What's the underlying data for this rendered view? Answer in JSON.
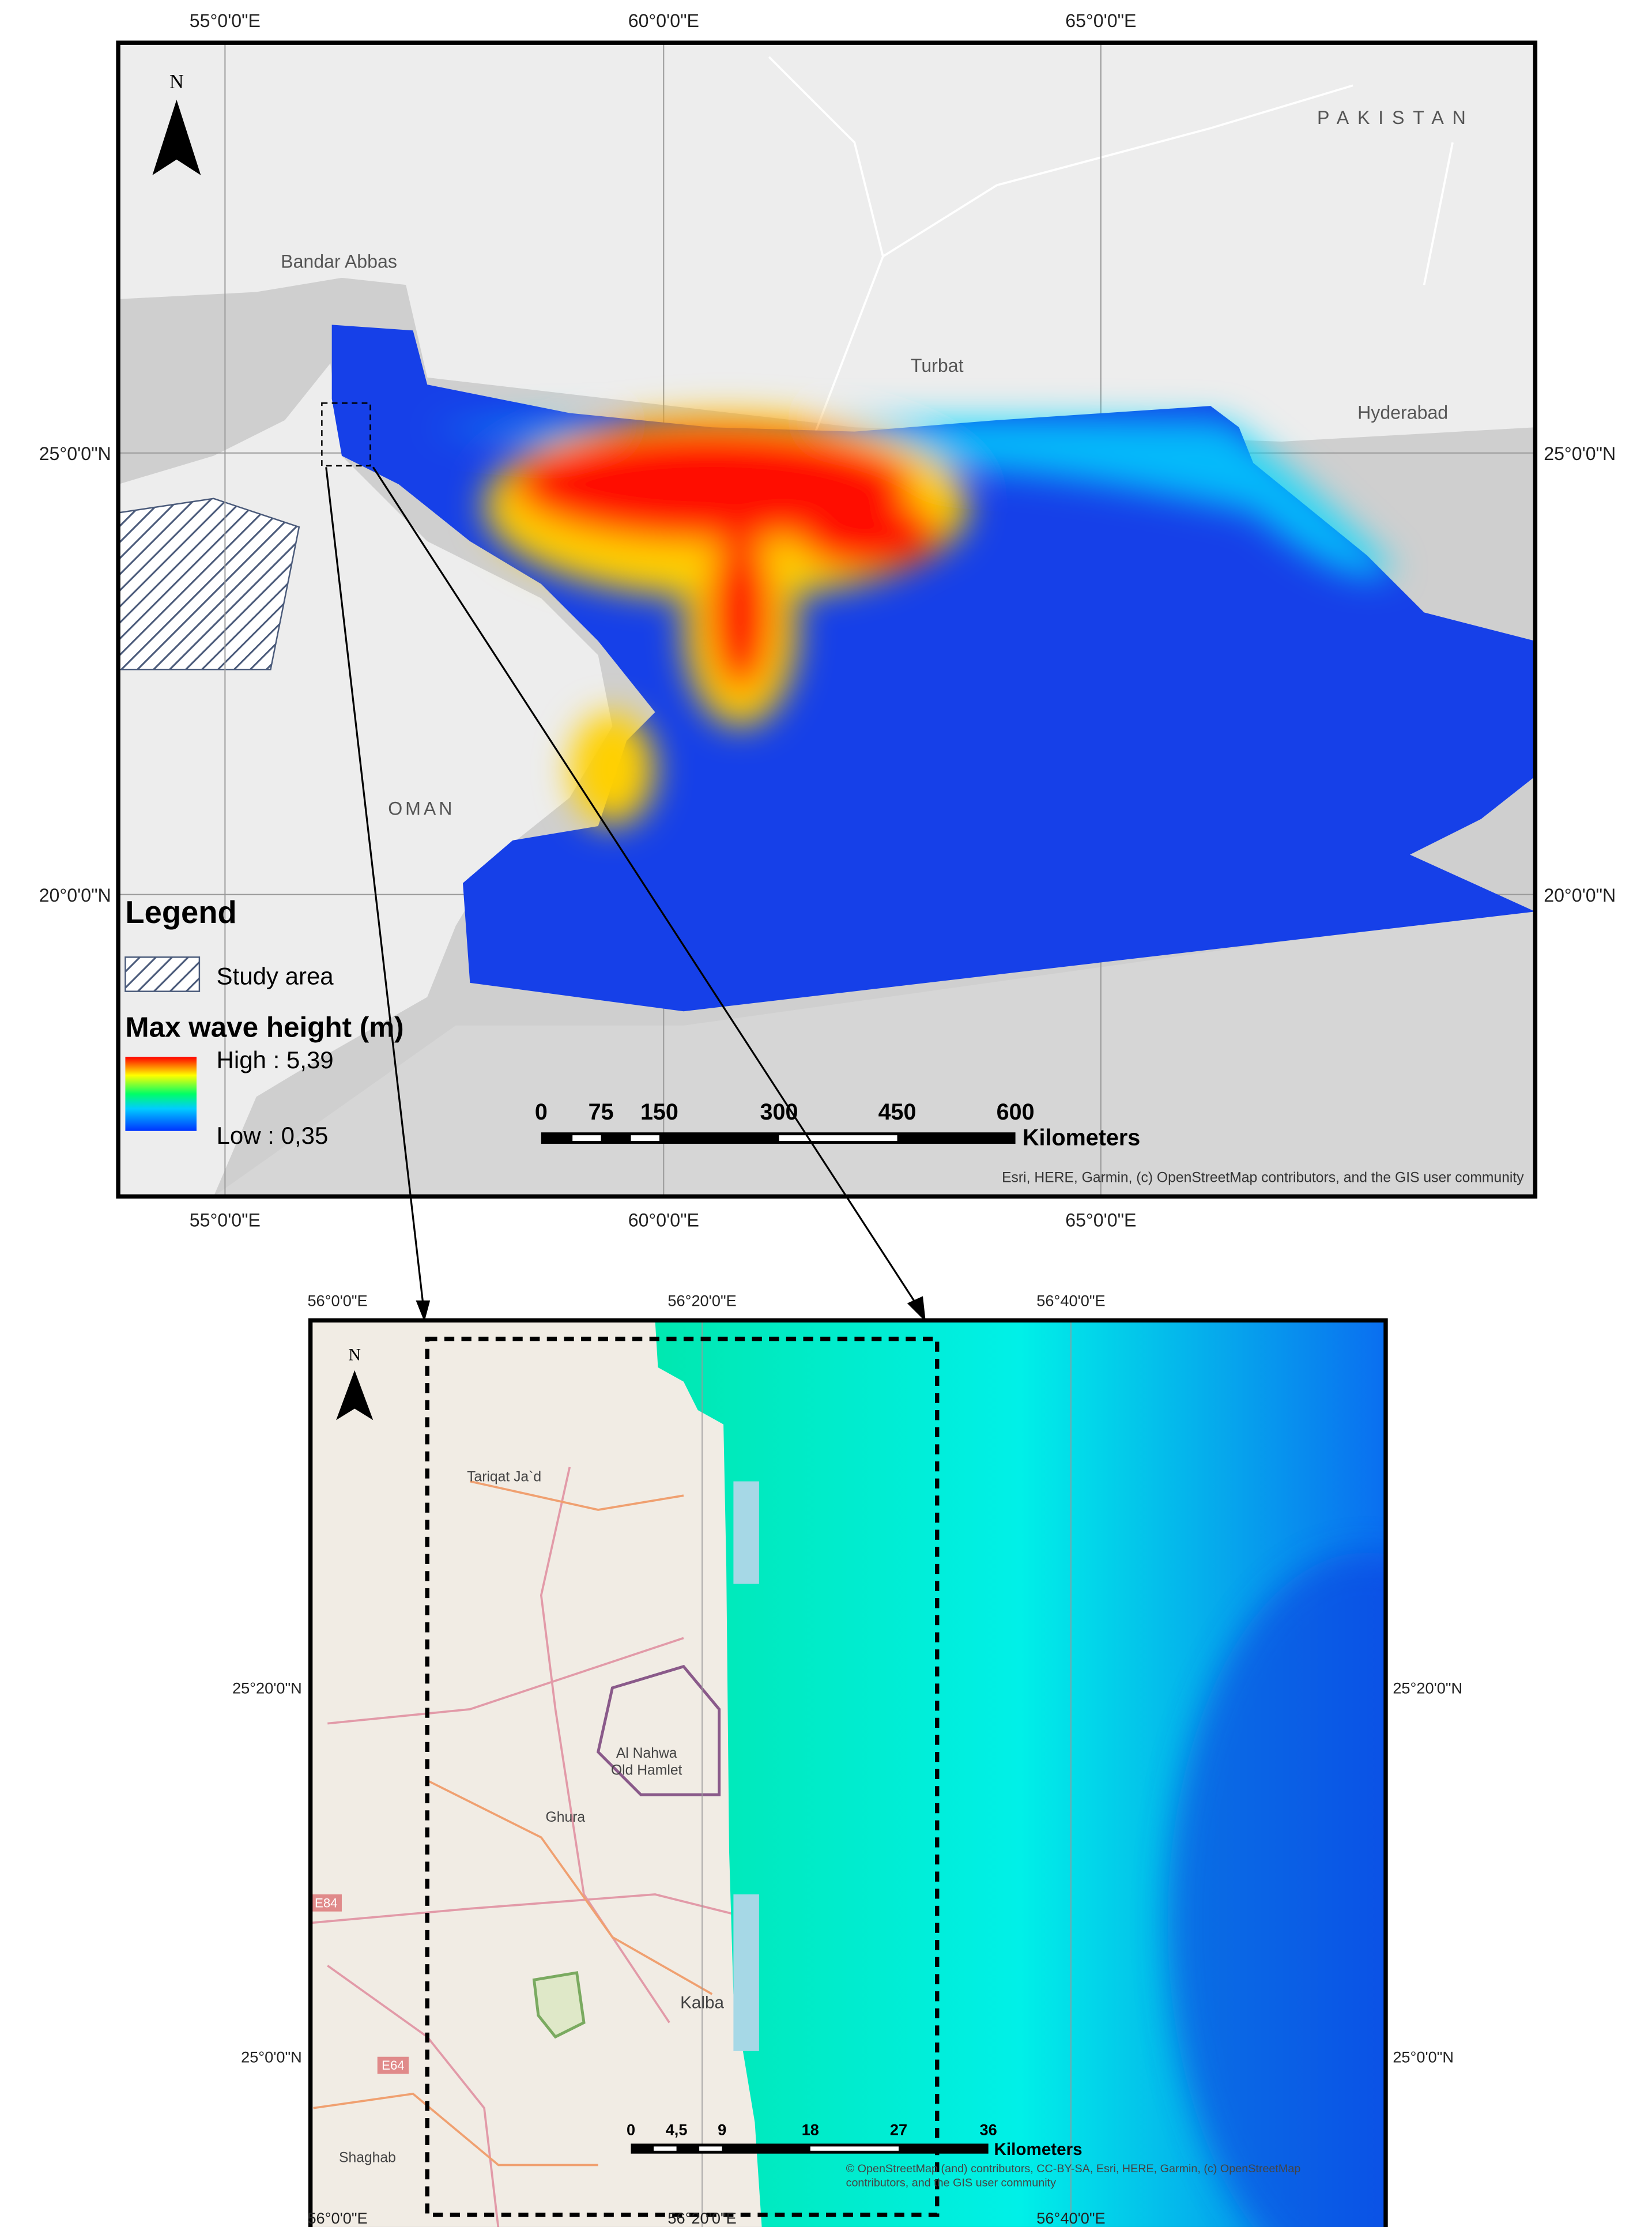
{
  "top_map": {
    "lon_labels": [
      "55°0'0\"E",
      "60°0'0\"E",
      "65°0'0\"E"
    ],
    "lat_labels": [
      "25°0'0\"N",
      "20°0'0\"N"
    ],
    "north": "N",
    "places": [
      "PAKISTAN",
      "Bandar Abbas",
      "Turbat",
      "Hyderabad",
      "OMAN"
    ],
    "legend": {
      "title": "Legend",
      "study_area": "Study area",
      "ramp_title": "Max wave height (m)",
      "high": "High : 5,39",
      "low": "Low : 0,35"
    },
    "scale": {
      "ticks": [
        "0",
        "75",
        "150",
        "300",
        "450",
        "600"
      ],
      "unit": "Kilometers"
    },
    "attribution": "Esri, HERE, Garmin, (c) OpenStreetMap contributors, and the GIS user community"
  },
  "bottom_map": {
    "lon_labels": [
      "56°0'0\"E",
      "56°20'0\"E",
      "56°40'0\"E"
    ],
    "lat_labels": [
      "25°20'0\"N",
      "25°0'0\"N"
    ],
    "north": "N",
    "places": [
      "Tariqat Ja`d",
      "Al Nahwa",
      "Old Hamlet",
      "Ghura",
      "Kalba",
      "Shaghab",
      "E84",
      "E64"
    ],
    "scale": {
      "ticks": [
        "0",
        "4,5",
        "9",
        "18",
        "27",
        "36"
      ],
      "unit": "Kilometers"
    },
    "attribution": [
      "© OpenStreetMap (and) contributors, CC-BY-SA, Esri, HERE, Garmin, (c) OpenStreetMap",
      "contributors, and the GIS user community"
    ]
  }
}
